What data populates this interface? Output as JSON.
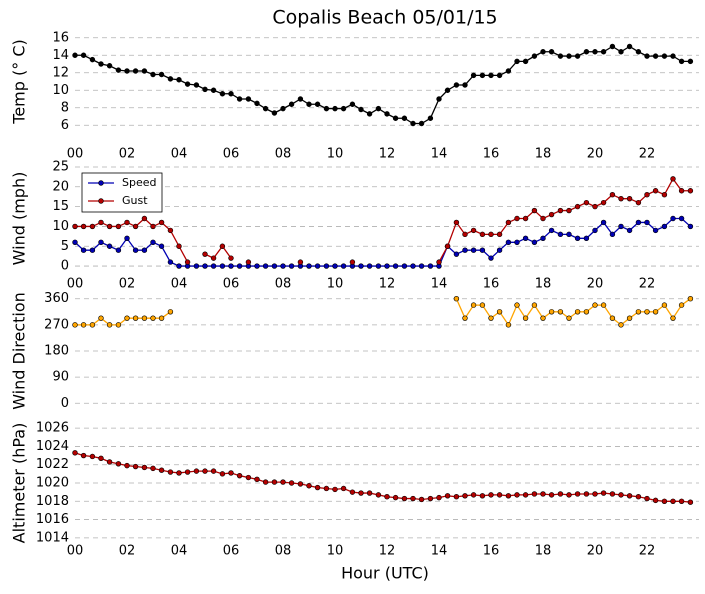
{
  "title": "Copalis Beach 05/01/15",
  "chart_data": [
    {
      "type": "line",
      "ylabel": "Temp (° C)",
      "x": [
        0,
        0.33,
        0.67,
        1,
        1.33,
        1.67,
        2,
        2.33,
        2.67,
        3,
        3.33,
        3.67,
        4,
        4.33,
        4.67,
        5,
        5.33,
        5.67,
        6,
        6.33,
        6.67,
        7,
        7.33,
        7.67,
        8,
        8.33,
        8.67,
        9,
        9.33,
        9.67,
        10,
        10.33,
        10.67,
        11,
        11.33,
        11.67,
        12,
        12.33,
        12.67,
        13,
        13.33,
        13.67,
        14,
        14.33,
        14.67,
        15,
        15.33,
        15.67,
        16,
        16.33,
        16.67,
        17,
        17.33,
        17.67,
        18,
        18.33,
        18.67,
        19,
        19.33,
        19.67,
        20,
        20.33,
        20.67,
        21,
        21.33,
        21.67,
        22,
        22.33,
        22.67,
        23,
        23.33,
        23.67
      ],
      "series": [
        {
          "color": "#000000",
          "values": [
            14,
            14,
            13.5,
            13,
            12.8,
            12.3,
            12.2,
            12.2,
            12.2,
            11.8,
            11.8,
            11.3,
            11.2,
            10.7,
            10.6,
            10.1,
            10,
            9.6,
            9.6,
            9,
            9,
            8.5,
            7.9,
            7.4,
            7.9,
            8.4,
            9,
            8.4,
            8.4,
            7.9,
            7.9,
            7.9,
            8.4,
            7.8,
            7.3,
            7.9,
            7.3,
            6.8,
            6.8,
            6.2,
            6.2,
            6.8,
            9,
            10,
            10.6,
            10.6,
            11.7,
            11.7,
            11.7,
            11.7,
            12.2,
            13.3,
            13.3,
            13.9,
            14.4,
            14.4,
            13.9,
            13.9,
            13.9,
            14.4,
            14.4,
            14.4,
            15,
            14.4,
            15,
            14.4,
            13.9,
            13.9,
            13.9,
            13.9,
            13.3,
            13.3
          ]
        }
      ],
      "xlim": [
        0,
        24
      ],
      "xticks": [
        {
          "value": 0,
          "label": "00"
        },
        {
          "value": 2,
          "label": "02"
        },
        {
          "value": 4,
          "label": "04"
        },
        {
          "value": 6,
          "label": "06"
        },
        {
          "value": 8,
          "label": "08"
        },
        10,
        12,
        14,
        16,
        18,
        20,
        22
      ],
      "ylim": [
        5,
        17
      ],
      "yticks": [
        6,
        8,
        10,
        12,
        14,
        16
      ],
      "grid": true
    },
    {
      "type": "line",
      "ylabel": "Wind (mph)",
      "legend": "upper left",
      "x": [
        0,
        0.33,
        0.67,
        1,
        1.33,
        1.67,
        2,
        2.33,
        2.67,
        3,
        3.33,
        3.67,
        4,
        4.33,
        4.67,
        5,
        5.33,
        5.67,
        6,
        6.33,
        6.67,
        7,
        7.33,
        7.67,
        8,
        8.33,
        8.67,
        9,
        9.33,
        9.67,
        10,
        10.33,
        10.67,
        11,
        11.33,
        11.67,
        12,
        12.33,
        12.67,
        13,
        13.33,
        13.67,
        14,
        14.33,
        14.67,
        15,
        15.33,
        15.67,
        16,
        16.33,
        16.67,
        17,
        17.33,
        17.67,
        18,
        18.33,
        18.67,
        19,
        19.33,
        19.67,
        20,
        20.33,
        20.67,
        21,
        21.33,
        21.67,
        22,
        22.33,
        22.67,
        23,
        23.33,
        23.67
      ],
      "series": [
        {
          "name": "Speed",
          "color": "#0000b3",
          "values": [
            6,
            4,
            4,
            6,
            5,
            4,
            7,
            4,
            4,
            6,
            5,
            1,
            0,
            0,
            0,
            0,
            0,
            0,
            0,
            0,
            0,
            0,
            0,
            0,
            0,
            0,
            0,
            0,
            0,
            0,
            0,
            0,
            0,
            0,
            0,
            0,
            0,
            0,
            0,
            0,
            0,
            0,
            0,
            5,
            3,
            4,
            4,
            4,
            2,
            4,
            6,
            6,
            7,
            6,
            7,
            9,
            8,
            8,
            7,
            7,
            9,
            11,
            8,
            10,
            9,
            11,
            11,
            9,
            10,
            12,
            12,
            10
          ]
        },
        {
          "name": "Gust",
          "color": "#b30000",
          "values": [
            10,
            10,
            10,
            11,
            10,
            10,
            11,
            10,
            12,
            10,
            11,
            9,
            5,
            1,
            null,
            3,
            2,
            5,
            2,
            null,
            1,
            null,
            null,
            null,
            null,
            null,
            1,
            null,
            null,
            null,
            null,
            null,
            1,
            null,
            null,
            null,
            null,
            null,
            null,
            null,
            null,
            null,
            1,
            5,
            11,
            8,
            9,
            8,
            8,
            8,
            11,
            12,
            12,
            14,
            12,
            13,
            14,
            14,
            15,
            16,
            15,
            16,
            18,
            17,
            17,
            16,
            18,
            19,
            18,
            22,
            19,
            19
          ]
        }
      ],
      "xlim": [
        0,
        24
      ],
      "xticks": [
        {
          "value": 0,
          "label": "00"
        },
        {
          "value": 2,
          "label": "02"
        },
        {
          "value": 4,
          "label": "04"
        },
        {
          "value": 6,
          "label": "06"
        },
        {
          "value": 8,
          "label": "08"
        },
        10,
        12,
        14,
        16,
        18,
        20,
        22
      ],
      "ylim": [
        -2,
        26
      ],
      "yticks": [
        0,
        5,
        10,
        15,
        20,
        25
      ],
      "grid": true
    },
    {
      "type": "line",
      "ylabel": "Wind Direction",
      "x": [
        0,
        0.33,
        0.67,
        1,
        1.33,
        1.67,
        2,
        2.33,
        2.67,
        3,
        3.33,
        3.67,
        4,
        4.33,
        4.67,
        5,
        5.33,
        5.67,
        6,
        6.33,
        6.67,
        7,
        7.33,
        7.67,
        8,
        8.33,
        8.67,
        9,
        9.33,
        9.67,
        10,
        10.33,
        10.67,
        11,
        11.33,
        11.67,
        12,
        12.33,
        12.67,
        13,
        13.33,
        13.67,
        14,
        14.33,
        14.67,
        15,
        15.33,
        15.67,
        16,
        16.33,
        16.67,
        17,
        17.33,
        17.67,
        18,
        18.33,
        18.67,
        19,
        19.33,
        19.67,
        20,
        20.33,
        20.67,
        21,
        21.33,
        21.67,
        22,
        22.33,
        22.67,
        23,
        23.33,
        23.67
      ],
      "series": [
        {
          "color": "#ffa500",
          "values": [
            270,
            270,
            270,
            293,
            270,
            270,
            293,
            293,
            293,
            293,
            293,
            315,
            null,
            null,
            null,
            null,
            null,
            null,
            null,
            null,
            null,
            null,
            null,
            null,
            null,
            null,
            null,
            null,
            null,
            null,
            null,
            null,
            null,
            null,
            null,
            null,
            null,
            null,
            null,
            null,
            null,
            null,
            null,
            null,
            360,
            293,
            338,
            338,
            293,
            315,
            270,
            338,
            293,
            338,
            293,
            315,
            315,
            293,
            315,
            315,
            338,
            338,
            293,
            270,
            293,
            315,
            315,
            315,
            338,
            293,
            338,
            360
          ]
        }
      ],
      "xlim": [
        0,
        24
      ],
      "ylim": [
        -30,
        390
      ],
      "yticks": [
        0,
        90,
        180,
        270,
        360
      ],
      "grid": true
    },
    {
      "type": "line",
      "ylabel": "Altimeter (hPa)",
      "xlabel": "Hour (UTC)",
      "x": [
        0,
        0.33,
        0.67,
        1,
        1.33,
        1.67,
        2,
        2.33,
        2.67,
        3,
        3.33,
        3.67,
        4,
        4.33,
        4.67,
        5,
        5.33,
        5.67,
        6,
        6.33,
        6.67,
        7,
        7.33,
        7.67,
        8,
        8.33,
        8.67,
        9,
        9.33,
        9.67,
        10,
        10.33,
        10.67,
        11,
        11.33,
        11.67,
        12,
        12.33,
        12.67,
        13,
        13.33,
        13.67,
        14,
        14.33,
        14.67,
        15,
        15.33,
        15.67,
        16,
        16.33,
        16.67,
        17,
        17.33,
        17.67,
        18,
        18.33,
        18.67,
        19,
        19.33,
        19.67,
        20,
        20.33,
        20.67,
        21,
        21.33,
        21.67,
        22,
        22.33,
        22.67,
        23,
        23.33,
        23.67
      ],
      "series": [
        {
          "color": "#b30000",
          "values": [
            1023.3,
            1023,
            1022.9,
            1022.7,
            1022.3,
            1022.1,
            1021.9,
            1021.8,
            1021.7,
            1021.6,
            1021.4,
            1021.2,
            1021.1,
            1021.2,
            1021.3,
            1021.3,
            1021.3,
            1021,
            1021.1,
            1020.8,
            1020.6,
            1020.4,
            1020.1,
            1020.1,
            1020.1,
            1020,
            1019.9,
            1019.7,
            1019.5,
            1019.4,
            1019.3,
            1019.4,
            1019,
            1018.9,
            1018.9,
            1018.7,
            1018.5,
            1018.4,
            1018.3,
            1018.3,
            1018.2,
            1018.3,
            1018.4,
            1018.6,
            1018.5,
            1018.6,
            1018.7,
            1018.6,
            1018.7,
            1018.7,
            1018.6,
            1018.7,
            1018.7,
            1018.8,
            1018.8,
            1018.7,
            1018.8,
            1018.7,
            1018.8,
            1018.8,
            1018.8,
            1018.9,
            1018.8,
            1018.7,
            1018.6,
            1018.5,
            1018.3,
            1018.1,
            1018,
            1018,
            1018,
            1017.9
          ]
        }
      ],
      "xlim": [
        0,
        24
      ],
      "xticks": [
        {
          "value": 0,
          "label": "00"
        },
        {
          "value": 2,
          "label": "02"
        },
        {
          "value": 4,
          "label": "04"
        },
        {
          "value": 6,
          "label": "06"
        },
        {
          "value": 8,
          "label": "08"
        },
        10,
        12,
        14,
        16,
        18,
        20,
        22
      ],
      "ylim": [
        1013,
        1027
      ],
      "yticks": [
        1014,
        1016,
        1018,
        1020,
        1022,
        1024,
        1026
      ],
      "grid": true
    }
  ]
}
